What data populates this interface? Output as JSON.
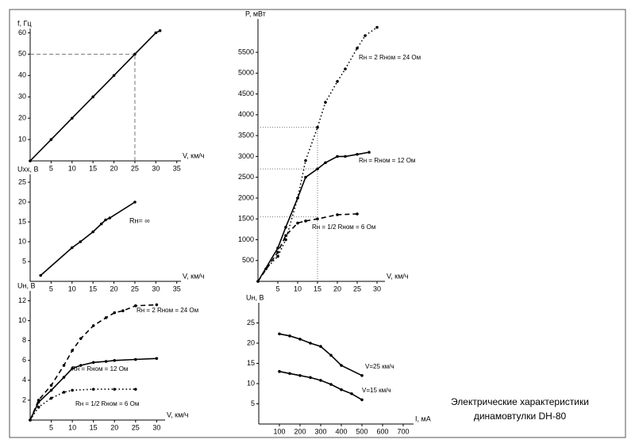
{
  "chart_data": [
    {
      "type": "line",
      "ylabel": "f, Гц",
      "xlabel": "V, км/ч",
      "xlim": [
        0,
        36
      ],
      "xticks": [
        5,
        10,
        15,
        20,
        25,
        30,
        35
      ],
      "ylim": [
        0,
        62
      ],
      "yticks": [
        10,
        20,
        30,
        40,
        50,
        60
      ],
      "guides": [
        {
          "x": 25,
          "y": 50
        }
      ],
      "series": [
        {
          "color": "#000000",
          "dash": "solid",
          "x": [
            0,
            5,
            10,
            15,
            20,
            25,
            30,
            31
          ],
          "values": [
            0,
            10,
            20,
            30,
            40,
            50,
            60,
            61
          ]
        }
      ]
    },
    {
      "type": "line",
      "ylabel": "Uxx, В",
      "xlabel": "V, км/ч",
      "annotation": "Rн= ∞",
      "xlim": [
        0,
        36
      ],
      "xticks": [
        5,
        10,
        15,
        20,
        25,
        30,
        35
      ],
      "ylim": [
        0,
        27
      ],
      "yticks": [
        5,
        10,
        15,
        20,
        25
      ],
      "series": [
        {
          "color": "#000000",
          "dash": "solid",
          "x": [
            2.5,
            10,
            12,
            15,
            17,
            18,
            19,
            25
          ],
          "values": [
            1.5,
            8.5,
            10,
            12.5,
            14.5,
            15.5,
            16,
            20
          ]
        }
      ]
    },
    {
      "type": "line",
      "ylabel": "Uн, В",
      "xlabel": "V, км/ч",
      "xlim": [
        0,
        32
      ],
      "xticks": [
        5,
        10,
        15,
        20,
        25,
        30
      ],
      "ylim": [
        0,
        13
      ],
      "yticks": [
        2,
        4,
        6,
        8,
        10,
        12
      ],
      "series": [
        {
          "name": "Rн = 2 Rном = 24 Ом",
          "color": "#000000",
          "dash": "dashed",
          "x": [
            0,
            2,
            5,
            8,
            10,
            12,
            15,
            18,
            20,
            22,
            25,
            30
          ],
          "values": [
            0,
            2,
            3.5,
            5.5,
            7,
            8.2,
            9.5,
            10.3,
            10.8,
            11,
            11.5,
            11.6
          ]
        },
        {
          "name": "Rн = Rном = 12 Ом",
          "color": "#000000",
          "dash": "solid",
          "x": [
            0,
            2,
            5,
            8,
            10,
            12,
            15,
            18,
            20,
            25,
            30
          ],
          "values": [
            0,
            1.8,
            3,
            4.3,
            5.2,
            5.5,
            5.8,
            5.9,
            6,
            6.1,
            6.2
          ]
        },
        {
          "name": "Rн = 1/2 Rном = 6 Ом",
          "color": "#000000",
          "dash": "dotted",
          "x": [
            0,
            2,
            5,
            8,
            10,
            15,
            20,
            25
          ],
          "values": [
            0,
            1.3,
            2.2,
            2.8,
            3,
            3.1,
            3.1,
            3.1
          ]
        }
      ]
    },
    {
      "type": "line",
      "ylabel": "P, мВт",
      "xlabel": "V, км/ч",
      "xlim": [
        0,
        32
      ],
      "xticks": [
        5,
        10,
        15,
        20,
        25,
        30
      ],
      "ylim": [
        0,
        6300
      ],
      "yticks": [
        500,
        1000,
        1500,
        2000,
        2500,
        3000,
        3500,
        4000,
        4500,
        5000,
        5500
      ],
      "guides": [
        {
          "x": 15,
          "y": 3700
        },
        {
          "x": 15,
          "y": 2700
        },
        {
          "x": 15,
          "y": 1550
        }
      ],
      "series": [
        {
          "name": "Rн = 2 Rном = 24 Ом",
          "color": "#000000",
          "dash": "dotted",
          "x": [
            2,
            5,
            7,
            10,
            12,
            15,
            17,
            20,
            22,
            25,
            27,
            30
          ],
          "values": [
            300,
            600,
            1000,
            2000,
            2900,
            3700,
            4300,
            4800,
            5100,
            5600,
            5900,
            6100
          ]
        },
        {
          "name": "Rн = Rном = 12 Ом",
          "color": "#000000",
          "dash": "solid",
          "x": [
            0,
            5,
            7,
            10,
            12,
            15,
            17,
            20,
            22,
            25,
            28
          ],
          "values": [
            0,
            800,
            1300,
            2000,
            2500,
            2700,
            2850,
            3000,
            3000,
            3050,
            3100
          ]
        },
        {
          "name": "Rн = 1/2 Rном = 6 Ом",
          "color": "#000000",
          "dash": "dashed",
          "x": [
            0,
            5,
            7,
            10,
            12,
            15,
            20,
            25
          ],
          "values": [
            0,
            700,
            1100,
            1400,
            1450,
            1500,
            1600,
            1620
          ]
        }
      ]
    },
    {
      "type": "line",
      "ylabel": "Uн, В",
      "xlabel": "I, мА",
      "xlim": [
        0,
        750
      ],
      "xticks": [
        100,
        200,
        300,
        400,
        500,
        600,
        700
      ],
      "ylim": [
        0,
        30
      ],
      "yticks": [
        5,
        10,
        15,
        20,
        25
      ],
      "series": [
        {
          "name": "V=25 км/ч",
          "color": "#000000",
          "dash": "solid",
          "x": [
            100,
            150,
            200,
            250,
            300,
            350,
            400,
            500
          ],
          "values": [
            22.3,
            21.8,
            21,
            20,
            19.2,
            17,
            14.5,
            12
          ]
        },
        {
          "name": "V=15 км/ч",
          "color": "#000000",
          "dash": "solid",
          "x": [
            100,
            150,
            200,
            250,
            300,
            350,
            400,
            450,
            500
          ],
          "values": [
            13,
            12.5,
            12,
            11.5,
            10.8,
            9.8,
            8.5,
            7.5,
            6
          ]
        }
      ]
    }
  ],
  "caption": [
    "Электрические характеристики",
    "динамовтулки DH-80"
  ]
}
